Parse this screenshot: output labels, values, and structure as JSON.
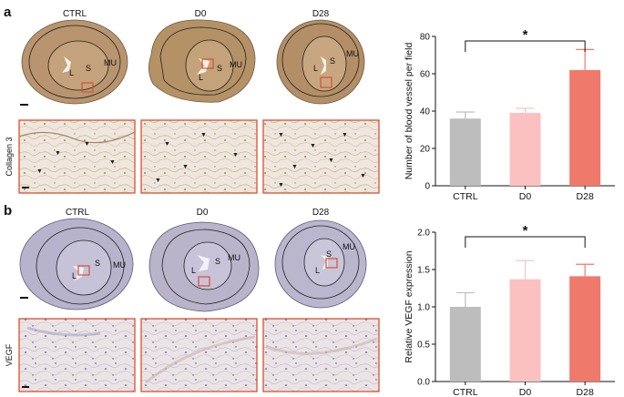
{
  "panels": [
    {
      "letter": "a",
      "groups": [
        "CTRL",
        "D0",
        "D28"
      ],
      "region_labels": {
        "lumen": "L",
        "submucosa": "S",
        "muscularis": "MU"
      },
      "stain_label": "Collagen 3"
    },
    {
      "letter": "b",
      "groups": [
        "CTRL",
        "D0",
        "D28"
      ],
      "region_labels": {
        "lumen": "L",
        "submucosa": "S",
        "muscularis": "MU"
      },
      "stain_label": "VEGF"
    }
  ],
  "colors": {
    "CTRL": "#bdbdbd",
    "D0": "#fbc0c0",
    "D28": "#ef7a6c",
    "inset_border": "#d9502f",
    "tissue_collagen": "#b08a64",
    "tissue_vegf": "#b1aec9"
  },
  "chart_data": [
    {
      "type": "bar",
      "categories": [
        "CTRL",
        "D0",
        "D28"
      ],
      "values": [
        36,
        39,
        62
      ],
      "errors": [
        3.5,
        2.5,
        11
      ],
      "title": "",
      "xlabel": "",
      "ylabel": "Number of blood vessel per field",
      "ylim": [
        0,
        80
      ],
      "yticks": [
        "0",
        "20",
        "40",
        "60",
        "80"
      ],
      "significance": {
        "from": "CTRL",
        "to": "D28",
        "label": "*"
      },
      "grid": false
    },
    {
      "type": "bar",
      "categories": [
        "CTRL",
        "D0",
        "D28"
      ],
      "values": [
        1.0,
        1.37,
        1.41
      ],
      "errors": [
        0.19,
        0.25,
        0.16
      ],
      "title": "",
      "xlabel": "",
      "ylabel": "Relative VEGF expression",
      "ylim": [
        0,
        2.0
      ],
      "yticks": [
        "0.0",
        "0.5",
        "1.0",
        "1.5",
        "2.0"
      ],
      "significance": {
        "from": "CTRL",
        "to": "D28",
        "label": "*"
      },
      "grid": false
    }
  ]
}
